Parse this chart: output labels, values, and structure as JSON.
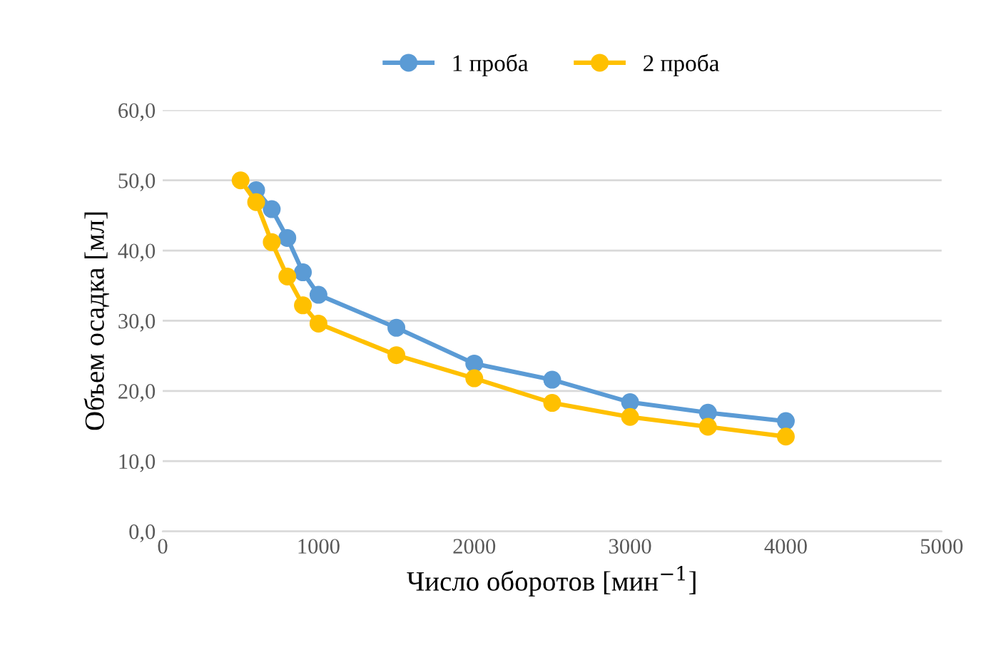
{
  "chart_data": {
    "type": "line",
    "xlabel": "Число оборотов [мин$^{−1}$]",
    "ylabel": "Объем осадка [мл]",
    "series": [
      {
        "name": "1 проба",
        "color": "#5b9bd5",
        "x": [
          600,
          700,
          800,
          900,
          1000,
          1500,
          2000,
          2500,
          3000,
          3500,
          4000
        ],
        "values": [
          48.6,
          45.9,
          41.8,
          36.9,
          33.7,
          29.0,
          23.9,
          21.6,
          18.4,
          16.9,
          15.7
        ]
      },
      {
        "name": "2 проба",
        "color": "#ffc000",
        "x": [
          500,
          600,
          700,
          800,
          900,
          1000,
          1500,
          2000,
          2500,
          3000,
          3500,
          4000
        ],
        "values": [
          50,
          46.9,
          41.2,
          36.3,
          32.2,
          29.6,
          25.1,
          21.8,
          18.3,
          16.3,
          14.9,
          13.5
        ]
      }
    ],
    "xlim": [
      0,
      5000
    ],
    "xticks": [
      0,
      1000,
      2000,
      3000,
      4000,
      5000
    ],
    "ylim": [
      0,
      60
    ],
    "yticks": [
      {
        "value": 0,
        "label": "0,0"
      },
      {
        "value": 10,
        "label": "10,0"
      },
      {
        "value": 20,
        "label": "20,0"
      },
      {
        "value": 30,
        "label": "30,0"
      },
      {
        "value": 40,
        "label": "40,0"
      },
      {
        "value": 50,
        "label": "50,0"
      },
      {
        "value": 60,
        "label": "60,0"
      }
    ],
    "grid": "y",
    "legend": "top",
    "marker": "circle",
    "line_style": "solid"
  }
}
